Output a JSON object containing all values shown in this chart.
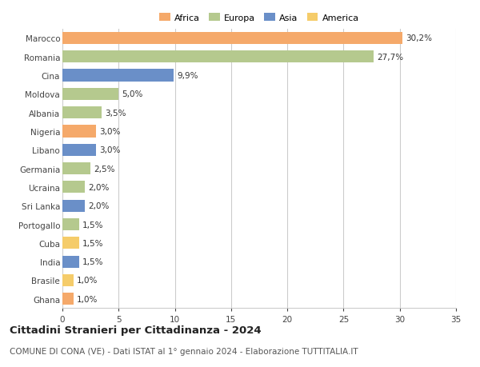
{
  "countries": [
    "Marocco",
    "Romania",
    "Cina",
    "Moldova",
    "Albania",
    "Nigeria",
    "Libano",
    "Germania",
    "Ucraina",
    "Sri Lanka",
    "Portogallo",
    "Cuba",
    "India",
    "Brasile",
    "Ghana"
  ],
  "values": [
    30.2,
    27.7,
    9.9,
    5.0,
    3.5,
    3.0,
    3.0,
    2.5,
    2.0,
    2.0,
    1.5,
    1.5,
    1.5,
    1.0,
    1.0
  ],
  "labels": [
    "30,2%",
    "27,7%",
    "9,9%",
    "5,0%",
    "3,5%",
    "3,0%",
    "3,0%",
    "2,5%",
    "2,0%",
    "2,0%",
    "1,5%",
    "1,5%",
    "1,5%",
    "1,0%",
    "1,0%"
  ],
  "continents": [
    "Africa",
    "Europa",
    "Asia",
    "Europa",
    "Europa",
    "Africa",
    "Asia",
    "Europa",
    "Europa",
    "Asia",
    "Europa",
    "America",
    "Asia",
    "America",
    "Africa"
  ],
  "colors": {
    "Africa": "#F5A96A",
    "Europa": "#B5C98E",
    "Asia": "#6A8FC8",
    "America": "#F5CC6A"
  },
  "legend_order": [
    "Africa",
    "Europa",
    "Asia",
    "America"
  ],
  "legend_colors": [
    "#F5A96A",
    "#B5C98E",
    "#6A8FC8",
    "#F5CC6A"
  ],
  "xlim": [
    0,
    35
  ],
  "xticks": [
    0,
    5,
    10,
    15,
    20,
    25,
    30,
    35
  ],
  "title": "Cittadini Stranieri per Cittadinanza - 2024",
  "subtitle": "COMUNE DI CONA (VE) - Dati ISTAT al 1° gennaio 2024 - Elaborazione TUTTITALIA.IT",
  "background_color": "#ffffff",
  "bar_height": 0.65,
  "grid_color": "#cccccc",
  "label_fontsize": 7.5,
  "tick_fontsize": 7.5,
  "title_fontsize": 9.5,
  "subtitle_fontsize": 7.5
}
